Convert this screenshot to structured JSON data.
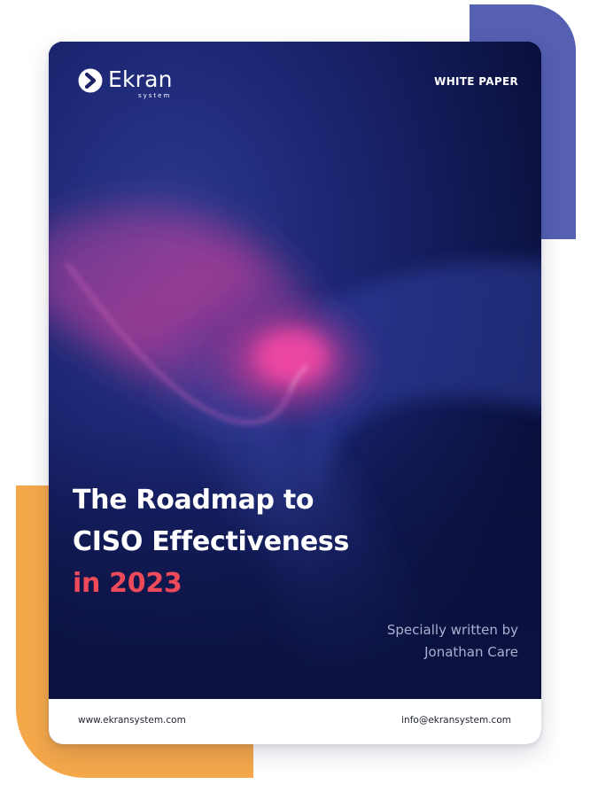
{
  "colors": {
    "cover_background": "#0b1240",
    "accent_red": "#ef4a5a",
    "accent_pink": "#e2399a",
    "deco_purple": "#5560b3",
    "deco_orange": "#f5a84a",
    "byline_text": "#aab0cf"
  },
  "brand": {
    "name": "Ekran",
    "tagline": "system",
    "logo_icon": "chevron-right-circle-icon"
  },
  "header": {
    "doc_type": "WHITE PAPER"
  },
  "title": {
    "line1": "The Roadmap to",
    "line2": "CISO Effectiveness",
    "line3": "in 2023"
  },
  "byline": {
    "line1": "Specially written by",
    "line2": "Jonathan Care"
  },
  "footer": {
    "website": "www.ekransystem.com",
    "email": "info@ekransystem.com"
  }
}
